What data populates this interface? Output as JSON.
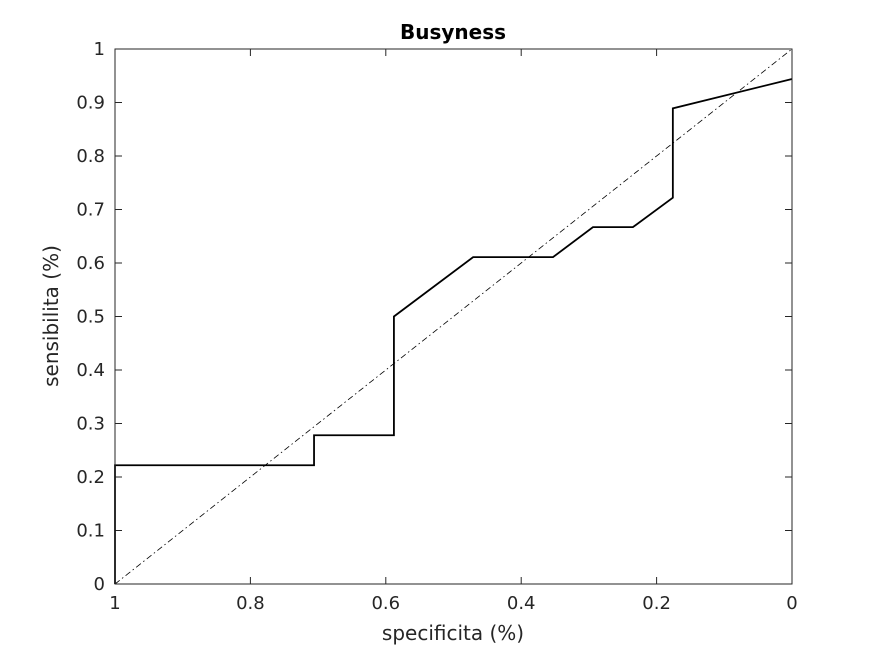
{
  "chart_data": {
    "type": "line",
    "title": "Busyness",
    "xlabel": "specificita (%)",
    "ylabel": "sensibilita (%)",
    "xlim": [
      0,
      1
    ],
    "ylim": [
      0,
      1
    ],
    "x_reversed": true,
    "grid": false,
    "legend": "none",
    "xticks": [
      1,
      0.8,
      0.6,
      0.4,
      0.2,
      0
    ],
    "xtick_labels": [
      "1",
      "0.8",
      "0.6",
      "0.4",
      "0.2",
      "0"
    ],
    "yticks": [
      0,
      0.1,
      0.2,
      0.3,
      0.4,
      0.5,
      0.6,
      0.7,
      0.8,
      0.9,
      1
    ],
    "ytick_labels": [
      "0",
      "0.1",
      "0.2",
      "0.3",
      "0.4",
      "0.5",
      "0.6",
      "0.7",
      "0.8",
      "0.9",
      "1"
    ],
    "series": [
      {
        "style": "solid",
        "color": "#000000",
        "x": [
          1,
          1,
          0.706,
          0.706,
          0.588,
          0.588,
          0.471,
          0.353,
          0.294,
          0.235,
          0.176,
          0.176,
          0
        ],
        "y": [
          0,
          0.222,
          0.222,
          0.278,
          0.278,
          0.5,
          0.611,
          0.611,
          0.667,
          0.667,
          0.722,
          0.889,
          0.944
        ]
      },
      {
        "style": "dash-dot",
        "color": "#000000",
        "x": [
          1,
          0
        ],
        "y": [
          0,
          1
        ]
      }
    ]
  }
}
